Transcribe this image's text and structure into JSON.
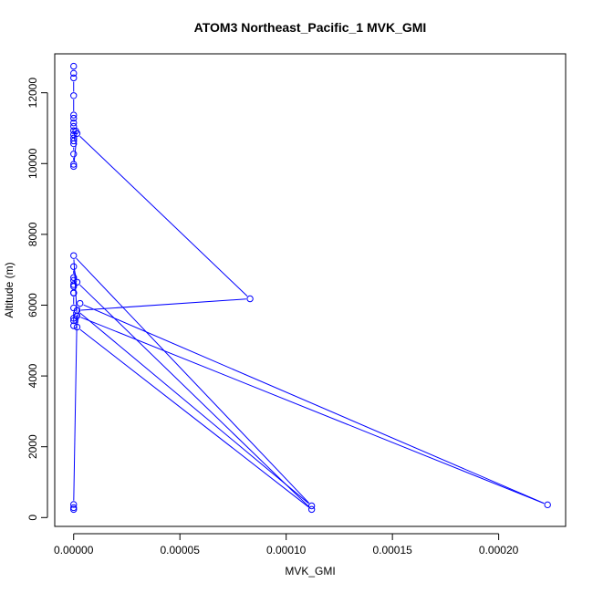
{
  "chart_data": {
    "type": "line",
    "title": "ATOM3 Northeast_Pacific_1 MVK_GMI",
    "xlabel": "MVK_GMI",
    "ylabel": "Altitude (m)",
    "xlim": [
      -8.9e-06,
      0.0002315
    ],
    "ylim": [
      -250,
      13100
    ],
    "x_ticks": [
      0,
      5e-05,
      0.0001,
      0.00015,
      0.0002
    ],
    "x_tick_labels": [
      "0.00000",
      "0.00005",
      "0.00010",
      "0.00015",
      "0.00020"
    ],
    "y_ticks": [
      0,
      2000,
      4000,
      6000,
      8000,
      10000,
      12000
    ],
    "y_tick_labels": [
      "0",
      "2000",
      "4000",
      "6000",
      "8000",
      "10000",
      "12000"
    ],
    "grid": false,
    "series": [
      {
        "color": "#0000ff",
        "marker": "open-circle",
        "x": [
          0,
          0,
          0,
          0,
          0,
          0,
          0,
          0,
          0,
          0,
          0,
          0,
          1e-06,
          0,
          0,
          0,
          0,
          1.6e-06,
          8.3e-05,
          1.6e-06,
          0,
          0,
          0,
          0,
          0,
          0,
          0,
          0,
          0,
          0,
          0,
          1.6e-06,
          0.000112,
          1.6e-06,
          3e-06,
          0.000223,
          1.6e-06,
          0,
          0.000112,
          1.6e-06,
          0,
          0,
          0
        ],
        "y": [
          12750,
          12550,
          12420,
          11920,
          11370,
          11280,
          11150,
          11050,
          10930,
          10820,
          10720,
          10640,
          10920,
          10560,
          10270,
          9980,
          9920,
          10850,
          6180,
          5850,
          5630,
          5560,
          5420,
          5920,
          6340,
          6350,
          6530,
          6580,
          6700,
          6780,
          7090,
          6650,
          230,
          5380,
          6050,
          360,
          5700,
          7400,
          330,
          5850,
          370,
          280,
          230
        ]
      }
    ]
  }
}
